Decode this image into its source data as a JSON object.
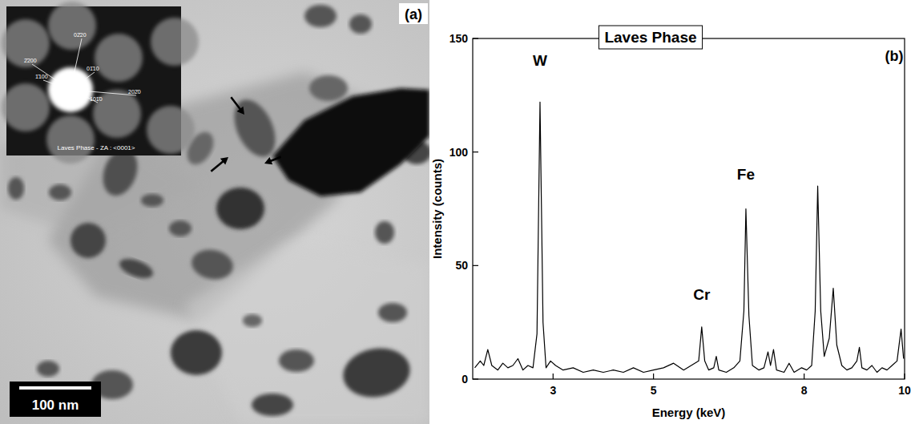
{
  "micrograph": {
    "panel_label": "(a)",
    "scale_bar": "100 nm",
    "inset": {
      "caption": "Laves Phase - ZA : <0001>",
      "spots": [
        "2̄200",
        "1̄100",
        "02̄20",
        "01̄10",
        "101̄0",
        "202̄0"
      ]
    }
  },
  "chart_data": {
    "type": "line",
    "panel_label": "(b)",
    "title": "Laves Phase",
    "x_label": "Energy (keV)",
    "y_label": "Intensity (counts)",
    "x": [
      1.44,
      1.55,
      1.62,
      1.7,
      1.78,
      1.9,
      2.0,
      2.1,
      2.2,
      2.3,
      2.4,
      2.5,
      2.6,
      2.68,
      2.74,
      2.8,
      2.86,
      2.95,
      3.05,
      3.2,
      3.4,
      3.6,
      3.8,
      4.0,
      4.2,
      4.4,
      4.6,
      4.8,
      5.0,
      5.2,
      5.4,
      5.6,
      5.75,
      5.9,
      5.96,
      6.02,
      6.1,
      6.2,
      6.25,
      6.3,
      6.45,
      6.6,
      6.72,
      6.8,
      6.84,
      6.9,
      6.97,
      7.1,
      7.2,
      7.28,
      7.33,
      7.39,
      7.45,
      7.6,
      7.7,
      7.8,
      7.95,
      8.05,
      8.15,
      8.22,
      8.27,
      8.33,
      8.4,
      8.5,
      8.58,
      8.65,
      8.75,
      8.85,
      8.95,
      9.05,
      9.1,
      9.15,
      9.25,
      9.35,
      9.45,
      9.55,
      9.65,
      9.75,
      9.85,
      9.93,
      9.98
    ],
    "values": [
      5,
      8,
      6,
      13,
      6,
      4,
      7,
      5,
      6,
      9,
      4,
      6,
      5,
      20,
      122,
      25,
      5,
      8,
      6,
      4,
      5,
      3,
      4,
      3,
      4,
      3,
      5,
      3,
      4,
      5,
      7,
      4,
      6,
      8,
      23,
      8,
      4,
      5,
      10,
      4,
      3,
      5,
      8,
      30,
      75,
      28,
      6,
      4,
      5,
      12,
      6,
      13,
      4,
      3,
      7,
      3,
      5,
      4,
      6,
      30,
      85,
      30,
      10,
      18,
      40,
      15,
      6,
      4,
      5,
      8,
      14,
      5,
      4,
      6,
      3,
      5,
      4,
      6,
      8,
      22,
      9
    ],
    "color": "#000000",
    "xlim": [
      1.4,
      10
    ],
    "xticks": [
      3,
      5,
      8,
      10
    ],
    "ylim": [
      0,
      150
    ],
    "yticks": [
      0,
      50,
      100,
      150
    ],
    "grid": false,
    "annotations": [
      {
        "text": "W",
        "x": 2.74,
        "y": 138
      },
      {
        "text": "Fe",
        "x": 6.84,
        "y": 88
      },
      {
        "text": "Cr",
        "x": 5.96,
        "y": 35
      }
    ]
  }
}
